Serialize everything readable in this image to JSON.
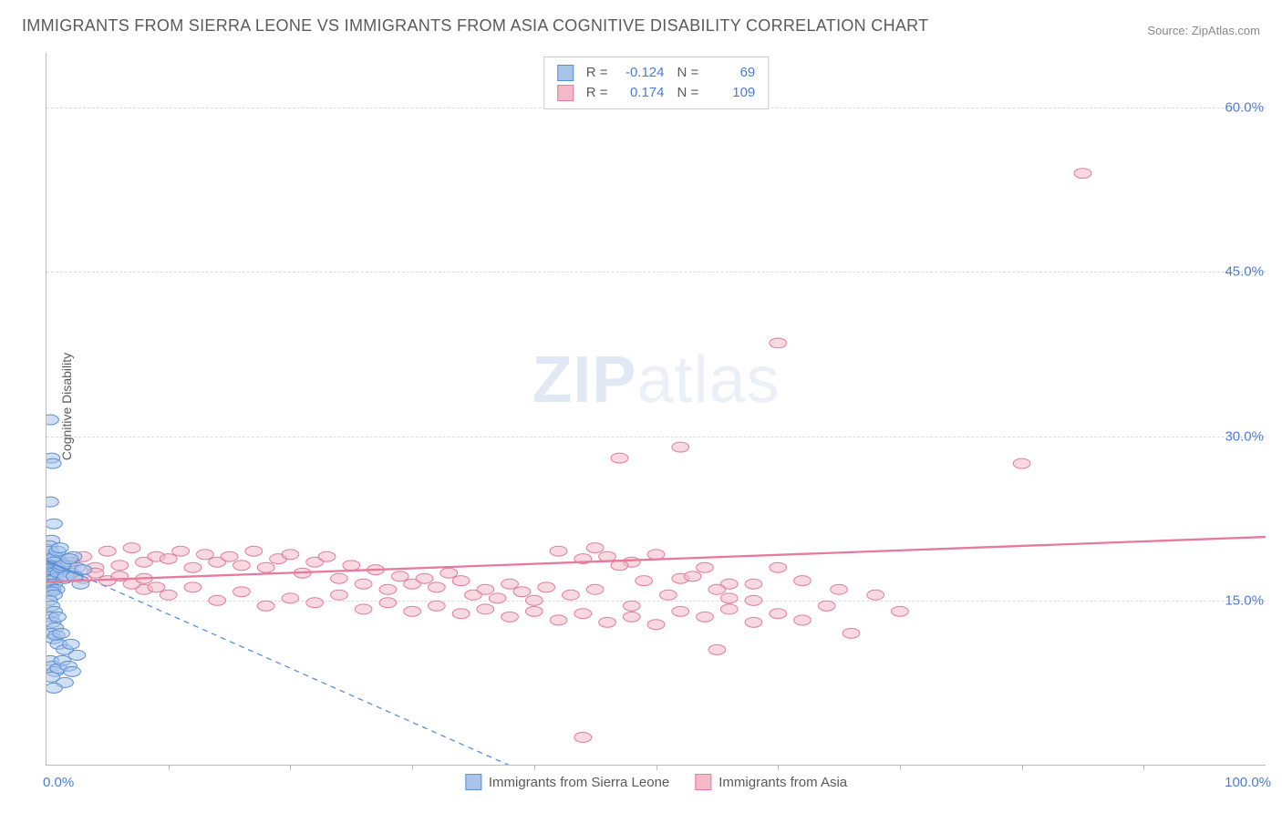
{
  "title": "IMMIGRANTS FROM SIERRA LEONE VS IMMIGRANTS FROM ASIA COGNITIVE DISABILITY CORRELATION CHART",
  "source_label": "Source:",
  "source_value": "ZipAtlas.com",
  "ylabel": "Cognitive Disability",
  "watermark": {
    "bold": "ZIP",
    "light": "atlas"
  },
  "series_a": {
    "name": "Immigrants from Sierra Leone",
    "color_fill": "#a9c4ea",
    "color_stroke": "#5a8fd8",
    "r_label": "R =",
    "n_label": "N =",
    "r_value": "-0.124",
    "n_value": "69",
    "trend": {
      "x1": 0,
      "y1": 18.6,
      "x2": 3,
      "y2": 17.2,
      "extrap_x2": 50,
      "extrap_y2": -6
    },
    "points": [
      [
        0.3,
        31.5
      ],
      [
        0.4,
        28.0
      ],
      [
        0.5,
        27.5
      ],
      [
        0.3,
        24.0
      ],
      [
        0.6,
        22.0
      ],
      [
        0.4,
        20.5
      ],
      [
        0.2,
        20.0
      ],
      [
        0.5,
        19.0
      ],
      [
        0.3,
        19.5
      ],
      [
        0.7,
        19.0
      ],
      [
        0.4,
        18.8
      ],
      [
        0.6,
        18.5
      ],
      [
        0.3,
        18.2
      ],
      [
        0.5,
        18.0
      ],
      [
        0.8,
        18.0
      ],
      [
        0.2,
        17.8
      ],
      [
        0.4,
        17.6
      ],
      [
        0.6,
        17.5
      ],
      [
        0.3,
        17.2
      ],
      [
        0.5,
        17.0
      ],
      [
        0.7,
        17.0
      ],
      [
        0.4,
        16.8
      ],
      [
        0.2,
        16.5
      ],
      [
        0.6,
        16.5
      ],
      [
        0.3,
        16.2
      ],
      [
        0.5,
        16.0
      ],
      [
        0.8,
        16.0
      ],
      [
        0.4,
        15.8
      ],
      [
        0.6,
        15.5
      ],
      [
        1.0,
        17.5
      ],
      [
        1.2,
        18.0
      ],
      [
        1.5,
        17.0
      ],
      [
        1.8,
        18.5
      ],
      [
        2.0,
        17.5
      ],
      [
        2.2,
        19.0
      ],
      [
        2.5,
        18.0
      ],
      [
        2.8,
        16.5
      ],
      [
        3.0,
        17.8
      ],
      [
        0.9,
        19.5
      ],
      [
        1.1,
        19.8
      ],
      [
        1.3,
        18.2
      ],
      [
        1.6,
        17.2
      ],
      [
        1.9,
        18.8
      ],
      [
        2.3,
        17.2
      ],
      [
        0.2,
        15.0
      ],
      [
        0.4,
        14.5
      ],
      [
        0.6,
        14.0
      ],
      [
        0.3,
        13.5
      ],
      [
        0.5,
        13.0
      ],
      [
        0.7,
        12.5
      ],
      [
        0.4,
        12.0
      ],
      [
        0.6,
        11.5
      ],
      [
        0.8,
        11.8
      ],
      [
        1.0,
        11.0
      ],
      [
        1.5,
        10.5
      ],
      [
        2.0,
        11.0
      ],
      [
        2.5,
        10.0
      ],
      [
        1.2,
        12.0
      ],
      [
        0.9,
        13.5
      ],
      [
        0.3,
        9.5
      ],
      [
        0.5,
        9.0
      ],
      [
        0.7,
        8.5
      ],
      [
        0.4,
        8.0
      ],
      [
        1.0,
        8.8
      ],
      [
        1.3,
        9.5
      ],
      [
        1.8,
        9.0
      ],
      [
        2.1,
        8.5
      ],
      [
        1.5,
        7.5
      ],
      [
        0.6,
        7.0
      ]
    ]
  },
  "series_b": {
    "name": "Immigrants from Asia",
    "color_fill": "#f4b9c8",
    "color_stroke": "#e57a9a",
    "r_label": "R =",
    "n_label": "N =",
    "r_value": "0.174",
    "n_value": "109",
    "trend": {
      "x1": 0,
      "y1": 16.7,
      "x2": 100,
      "y2": 20.8
    },
    "points": [
      [
        2,
        18.5
      ],
      [
        3,
        19.0
      ],
      [
        4,
        18.0
      ],
      [
        5,
        19.5
      ],
      [
        6,
        18.2
      ],
      [
        7,
        19.8
      ],
      [
        8,
        18.5
      ],
      [
        9,
        19.0
      ],
      [
        10,
        18.8
      ],
      [
        11,
        19.5
      ],
      [
        12,
        18.0
      ],
      [
        13,
        19.2
      ],
      [
        14,
        18.5
      ],
      [
        15,
        19.0
      ],
      [
        16,
        18.2
      ],
      [
        17,
        19.5
      ],
      [
        18,
        18.0
      ],
      [
        19,
        18.8
      ],
      [
        20,
        19.2
      ],
      [
        21,
        17.5
      ],
      [
        22,
        18.5
      ],
      [
        23,
        19.0
      ],
      [
        24,
        17.0
      ],
      [
        25,
        18.2
      ],
      [
        26,
        16.5
      ],
      [
        27,
        17.8
      ],
      [
        28,
        16.0
      ],
      [
        29,
        17.2
      ],
      [
        30,
        16.5
      ],
      [
        31,
        17.0
      ],
      [
        32,
        16.2
      ],
      [
        33,
        17.5
      ],
      [
        34,
        16.8
      ],
      [
        35,
        15.5
      ],
      [
        36,
        16.0
      ],
      [
        37,
        15.2
      ],
      [
        38,
        16.5
      ],
      [
        39,
        15.8
      ],
      [
        40,
        15.0
      ],
      [
        41,
        16.2
      ],
      [
        42,
        19.5
      ],
      [
        43,
        15.5
      ],
      [
        44,
        18.8
      ],
      [
        45,
        16.0
      ],
      [
        46,
        19.0
      ],
      [
        48,
        18.5
      ],
      [
        50,
        19.2
      ],
      [
        52,
        17.0
      ],
      [
        54,
        18.0
      ],
      [
        56,
        16.5
      ],
      [
        8,
        16.0
      ],
      [
        10,
        15.5
      ],
      [
        12,
        16.2
      ],
      [
        14,
        15.0
      ],
      [
        16,
        15.8
      ],
      [
        18,
        14.5
      ],
      [
        20,
        15.2
      ],
      [
        22,
        14.8
      ],
      [
        24,
        15.5
      ],
      [
        26,
        14.2
      ],
      [
        28,
        14.8
      ],
      [
        30,
        14.0
      ],
      [
        32,
        14.5
      ],
      [
        34,
        13.8
      ],
      [
        36,
        14.2
      ],
      [
        38,
        13.5
      ],
      [
        40,
        14.0
      ],
      [
        42,
        13.2
      ],
      [
        44,
        13.8
      ],
      [
        46,
        13.0
      ],
      [
        48,
        13.5
      ],
      [
        50,
        12.8
      ],
      [
        45,
        19.8
      ],
      [
        47,
        18.2
      ],
      [
        49,
        16.8
      ],
      [
        51,
        15.5
      ],
      [
        53,
        17.2
      ],
      [
        55,
        16.0
      ],
      [
        47,
        28.0
      ],
      [
        52,
        29.0
      ],
      [
        55,
        10.5
      ],
      [
        56,
        15.2
      ],
      [
        58,
        16.5
      ],
      [
        58,
        15.0
      ],
      [
        60,
        18.0
      ],
      [
        62,
        16.8
      ],
      [
        64,
        14.5
      ],
      [
        65,
        16.0
      ],
      [
        66,
        12.0
      ],
      [
        68,
        15.5
      ],
      [
        60,
        38.5
      ],
      [
        80,
        27.5
      ],
      [
        85,
        54.0
      ],
      [
        3,
        17.0
      ],
      [
        4,
        17.5
      ],
      [
        5,
        16.8
      ],
      [
        6,
        17.2
      ],
      [
        7,
        16.5
      ],
      [
        8,
        17.0
      ],
      [
        9,
        16.2
      ],
      [
        44,
        2.5
      ],
      [
        48,
        14.5
      ],
      [
        52,
        14.0
      ],
      [
        54,
        13.5
      ],
      [
        56,
        14.2
      ],
      [
        58,
        13.0
      ],
      [
        60,
        13.8
      ],
      [
        62,
        13.2
      ],
      [
        70,
        14.0
      ]
    ]
  },
  "axes": {
    "xlim": [
      0,
      100
    ],
    "ylim": [
      0,
      65
    ],
    "yticks": [
      15,
      30,
      45,
      60
    ],
    "ytick_labels": [
      "15.0%",
      "30.0%",
      "45.0%",
      "60.0%"
    ],
    "xtick_marks": [
      10,
      20,
      30,
      40,
      50,
      60,
      70,
      80,
      90
    ],
    "x_left_label": "0.0%",
    "x_right_label": "100.0%",
    "grid_color": "#dcdcdc",
    "axis_color": "#bcbcbc",
    "tick_color": "#4a7bd8"
  },
  "style": {
    "marker_radius": 7,
    "marker_opacity": 0.55,
    "trend_width": 2.3,
    "background": "#ffffff"
  }
}
